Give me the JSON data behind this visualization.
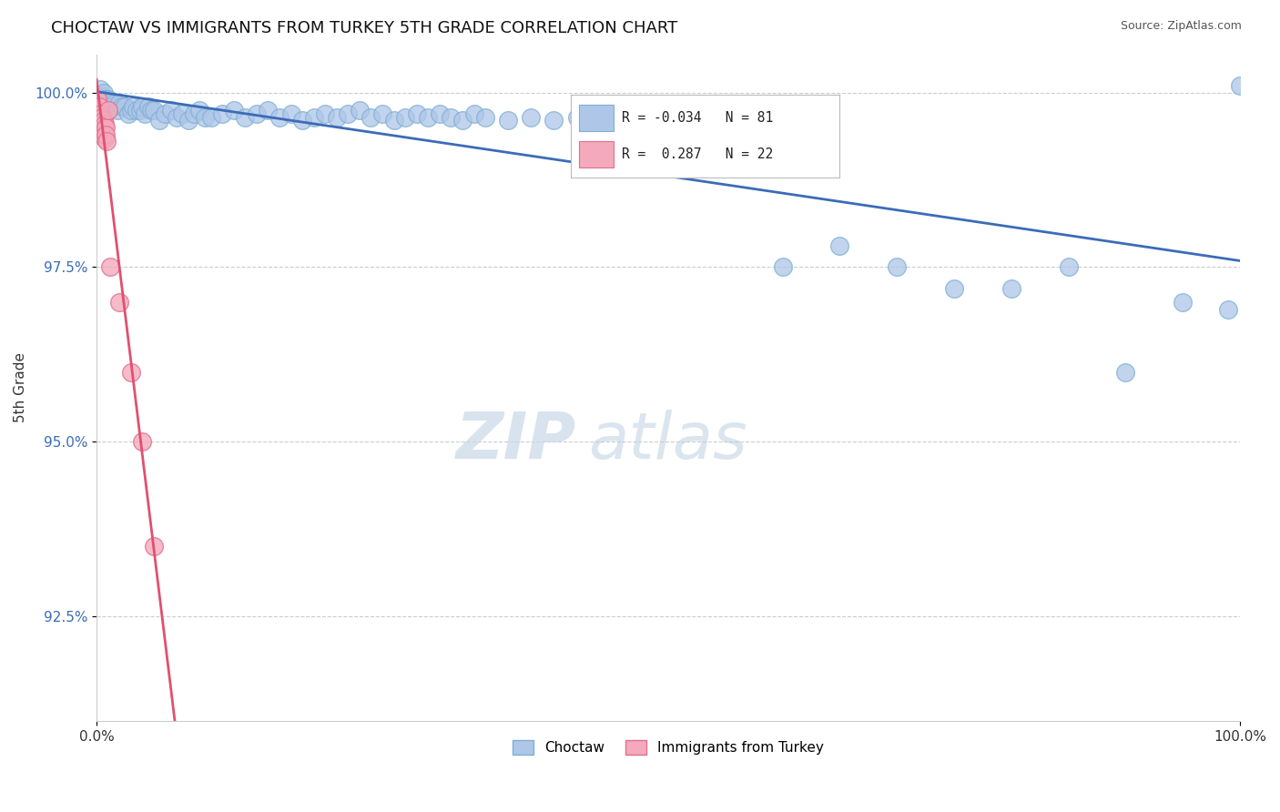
{
  "title": "CHOCTAW VS IMMIGRANTS FROM TURKEY 5TH GRADE CORRELATION CHART",
  "source": "Source: ZipAtlas.com",
  "ylabel": "5th Grade",
  "xlim": [
    0.0,
    1.0
  ],
  "ylim": [
    0.91,
    1.0055
  ],
  "yticks": [
    0.925,
    0.95,
    0.975,
    1.0
  ],
  "ytick_labels": [
    "92.5%",
    "95.0%",
    "97.5%",
    "100.0%"
  ],
  "xtick_labels": [
    "0.0%",
    "100.0%"
  ],
  "legend_R_blue": "-0.034",
  "legend_N_blue": "81",
  "legend_R_pink": "0.287",
  "legend_N_pink": "22",
  "blue_color": "#aec6e8",
  "blue_edge": "#7fafd4",
  "pink_color": "#f4aabc",
  "pink_edge": "#e07090",
  "trendline_blue": "#3b6cb7",
  "trendline_pink": "#e05070",
  "watermark_zip": "ZIP",
  "watermark_atlas": "atlas",
  "blue_scatter_x": [
    0.002,
    0.003,
    0.003,
    0.004,
    0.005,
    0.006,
    0.007,
    0.007,
    0.008,
    0.009,
    0.01,
    0.012,
    0.014,
    0.016,
    0.018,
    0.02,
    0.022,
    0.025,
    0.028,
    0.03,
    0.032,
    0.035,
    0.038,
    0.04,
    0.042,
    0.045,
    0.048,
    0.05,
    0.055,
    0.06,
    0.065,
    0.07,
    0.075,
    0.08,
    0.085,
    0.09,
    0.095,
    0.1,
    0.11,
    0.12,
    0.13,
    0.14,
    0.15,
    0.16,
    0.17,
    0.18,
    0.19,
    0.2,
    0.21,
    0.22,
    0.23,
    0.24,
    0.25,
    0.26,
    0.27,
    0.28,
    0.29,
    0.3,
    0.31,
    0.32,
    0.33,
    0.34,
    0.36,
    0.38,
    0.4,
    0.42,
    0.45,
    0.48,
    0.5,
    0.52,
    0.55,
    0.6,
    0.65,
    0.7,
    0.75,
    0.8,
    0.85,
    0.9,
    0.95,
    0.99,
    1.0
  ],
  "blue_scatter_y": [
    0.9995,
    1.0005,
    0.9985,
    0.9975,
    0.9995,
    1.0,
    0.9985,
    0.999,
    0.999,
    0.9975,
    0.999,
    0.9985,
    0.998,
    0.9985,
    0.9975,
    0.9985,
    0.998,
    0.998,
    0.997,
    0.9975,
    0.998,
    0.9975,
    0.9975,
    0.998,
    0.997,
    0.998,
    0.9975,
    0.9975,
    0.996,
    0.997,
    0.9975,
    0.9965,
    0.997,
    0.996,
    0.997,
    0.9975,
    0.9965,
    0.9965,
    0.997,
    0.9975,
    0.9965,
    0.997,
    0.9975,
    0.9965,
    0.997,
    0.996,
    0.9965,
    0.997,
    0.9965,
    0.997,
    0.9975,
    0.9965,
    0.997,
    0.996,
    0.9965,
    0.997,
    0.9965,
    0.997,
    0.9965,
    0.996,
    0.997,
    0.9965,
    0.996,
    0.9965,
    0.996,
    0.9965,
    0.996,
    0.9955,
    0.996,
    0.9955,
    0.996,
    0.975,
    0.978,
    0.975,
    0.972,
    0.972,
    0.975,
    0.96,
    0.97,
    0.969,
    1.001
  ],
  "pink_scatter_x": [
    0.001,
    0.002,
    0.002,
    0.003,
    0.003,
    0.004,
    0.004,
    0.005,
    0.005,
    0.006,
    0.006,
    0.007,
    0.007,
    0.008,
    0.008,
    0.009,
    0.01,
    0.012,
    0.02,
    0.03,
    0.04,
    0.05
  ],
  "pink_scatter_y": [
    0.999,
    0.998,
    0.9965,
    0.996,
    0.995,
    0.997,
    0.9955,
    0.9965,
    0.9945,
    0.996,
    0.994,
    0.9955,
    0.9935,
    0.995,
    0.994,
    0.993,
    0.9975,
    0.975,
    0.97,
    0.96,
    0.95,
    0.935
  ]
}
